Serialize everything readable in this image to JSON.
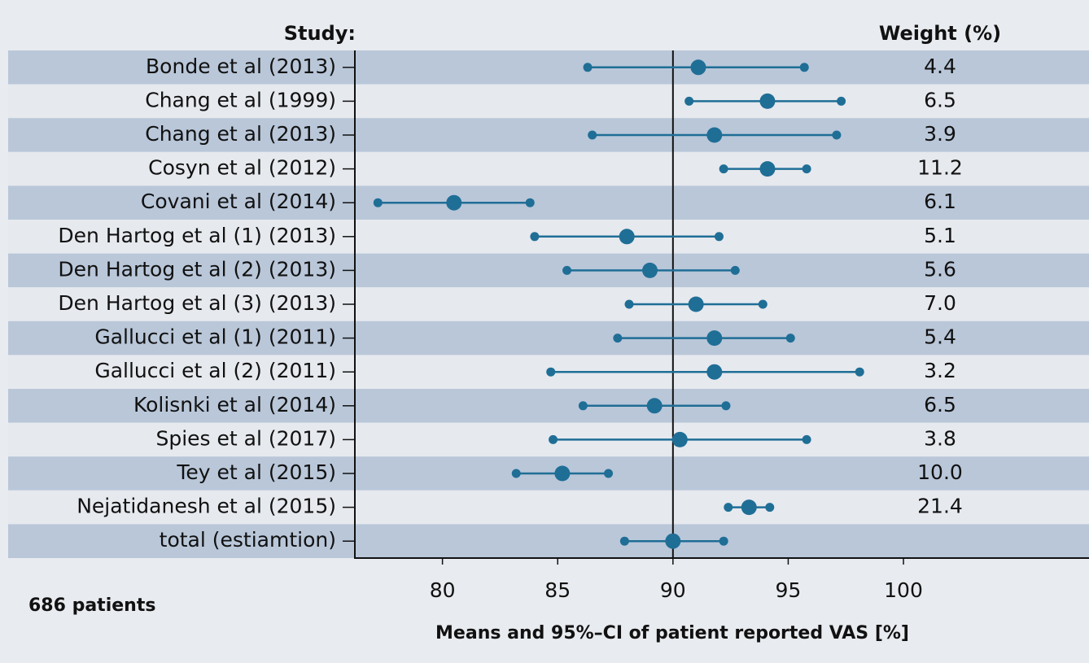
{
  "chart_data": {
    "type": "forest",
    "row_title": "Study:",
    "weight_title": "Weight (%)",
    "note": "686 patients",
    "x_label": "Means and 95%–CI of patient reported VAS [%]",
    "categories": [
      "Bonde et al (2013)",
      "Chang et al (1999)",
      "Chang et al (2013)",
      "Cosyn et al (2012)",
      "Covani et al (2014)",
      "Den Hartog et al (1) (2013)",
      "Den Hartog et al (2) (2013)",
      "Den Hartog et al (3) (2013)",
      "Gallucci et al (1) (2011)",
      "Gallucci et al (2) (2011)",
      "Kolisnki et al (2014)",
      "Spies et al (2017)",
      "Tey et al (2015)",
      "Nejatidanesh et al (2015)",
      "total (estiamtion)"
    ],
    "mean": [
      91.1,
      94.1,
      91.8,
      94.1,
      80.5,
      88.0,
      89.0,
      91.0,
      91.8,
      91.8,
      89.2,
      90.3,
      85.2,
      93.3,
      90.0
    ],
    "lower": [
      86.3,
      90.7,
      86.5,
      92.2,
      77.2,
      84.0,
      85.4,
      88.1,
      87.6,
      84.7,
      86.1,
      84.8,
      83.2,
      92.4,
      87.9
    ],
    "upper": [
      95.7,
      97.3,
      97.1,
      95.8,
      83.8,
      92.0,
      92.7,
      93.9,
      95.1,
      98.1,
      92.3,
      95.8,
      87.2,
      94.2,
      92.2
    ],
    "weights": [
      "4.4",
      "6.5",
      "3.9",
      "11.2",
      "6.1",
      "5.1",
      "5.6",
      "7.0",
      "5.4",
      "3.2",
      "6.5",
      "3.8",
      "10.0",
      "21.4",
      null
    ],
    "color": "#1f6e96",
    "reference": 90,
    "xlim": [
      76.2,
      108.05
    ],
    "xticks": [
      80,
      85,
      90,
      95,
      100
    ]
  }
}
